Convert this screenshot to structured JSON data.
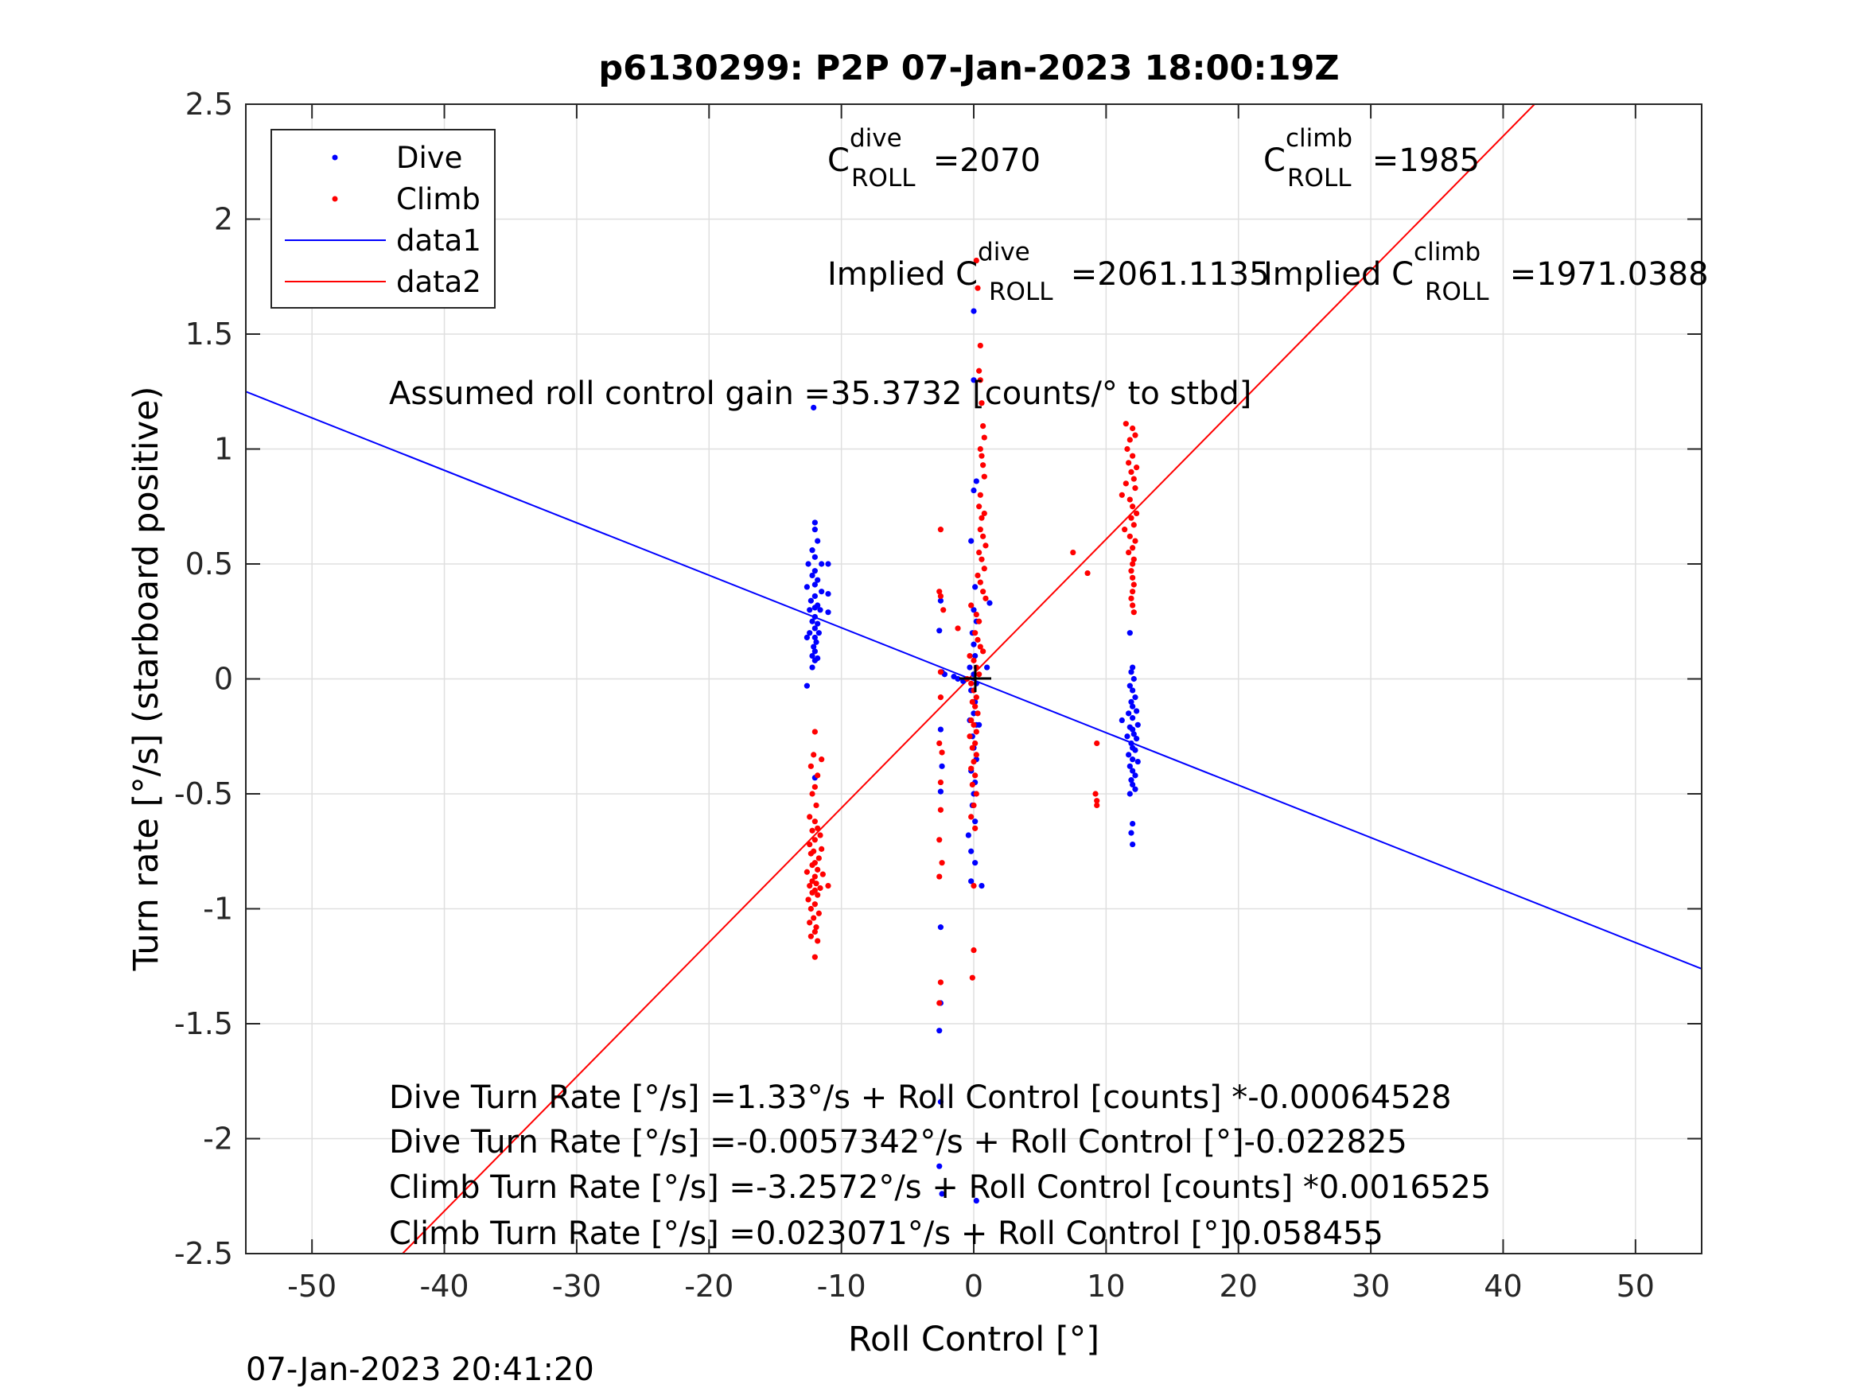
{
  "chart_data": {
    "type": "scatter",
    "title": "p6130299: P2P 07-Jan-2023 18:00:19Z",
    "xlabel": "Roll Control [°]",
    "ylabel": "Turn rate [°/s] (starboard positive)",
    "xlim": [
      -55,
      55
    ],
    "ylim": [
      -2.5,
      2.5
    ],
    "xticks": [
      -50,
      -40,
      -30,
      -20,
      -10,
      0,
      10,
      20,
      30,
      40,
      50
    ],
    "xtick_labels": [
      "-50",
      "-40",
      "-30",
      "-20",
      "-10",
      "0",
      "10",
      "20",
      "30",
      "40",
      "50"
    ],
    "yticks": [
      -2.5,
      -2,
      -1.5,
      -1,
      -0.5,
      0,
      0.5,
      1,
      1.5,
      2,
      2.5
    ],
    "ytick_labels": [
      "-2.5",
      "-2",
      "-1.5",
      "-1",
      "-0.5",
      "0",
      "0.5",
      "1",
      "1.5",
      "2",
      "2.5"
    ],
    "grid": true,
    "legend_position": "top-left",
    "series": [
      {
        "name": "Dive",
        "kind": "points",
        "color": "#0000ff",
        "points": [
          [
            -12,
            0.68
          ],
          [
            -12,
            0.65
          ],
          [
            -11.8,
            0.6
          ],
          [
            -12.2,
            0.56
          ],
          [
            -12,
            0.53
          ],
          [
            -12.5,
            0.5
          ],
          [
            -11.5,
            0.5
          ],
          [
            -11,
            0.5
          ],
          [
            -12,
            0.47
          ],
          [
            -12.2,
            0.45
          ],
          [
            -11.8,
            0.43
          ],
          [
            -12,
            0.41
          ],
          [
            -12.6,
            0.4
          ],
          [
            -11.5,
            0.38
          ],
          [
            -11,
            0.37
          ],
          [
            -12,
            0.36
          ],
          [
            -12.3,
            0.34
          ],
          [
            -11.8,
            0.32
          ],
          [
            -12,
            0.31
          ],
          [
            -11.6,
            0.3
          ],
          [
            -12.4,
            0.3
          ],
          [
            -11,
            0.29
          ],
          [
            -12,
            0.27
          ],
          [
            -12.2,
            0.25
          ],
          [
            -11.8,
            0.24
          ],
          [
            -12,
            0.22
          ],
          [
            -12.4,
            0.2
          ],
          [
            -11.7,
            0.2
          ],
          [
            -12,
            0.18
          ],
          [
            -12.6,
            0.18
          ],
          [
            -11.9,
            0.16
          ],
          [
            -12.1,
            0.14
          ],
          [
            -12,
            0.12
          ],
          [
            -12.2,
            0.1
          ],
          [
            -11.8,
            0.09
          ],
          [
            -12,
            0.08
          ],
          [
            -12.2,
            0.05
          ],
          [
            -12.1,
            1.18
          ],
          [
            -12.6,
            -0.03
          ],
          [
            -12,
            -0.43
          ],
          [
            -2.5,
            0.34
          ],
          [
            -2.6,
            0.21
          ],
          [
            -2.4,
            0.03
          ],
          [
            -2.2,
            0.02
          ],
          [
            -1.5,
            0.01
          ],
          [
            -1.2,
            0
          ],
          [
            -0.8,
            -0.01
          ],
          [
            -2.5,
            -0.22
          ],
          [
            -2.4,
            -0.38
          ],
          [
            -2.5,
            -0.49
          ],
          [
            -2.5,
            -1.08
          ],
          [
            -2.5,
            -1.41
          ],
          [
            -2.6,
            -1.53
          ],
          [
            -2.5,
            -1.84
          ],
          [
            -2.6,
            -2.12
          ],
          [
            -2.4,
            -2.24
          ],
          [
            0,
            1.6
          ],
          [
            0,
            1.3
          ],
          [
            0.2,
            0.86
          ],
          [
            0,
            0.82
          ],
          [
            -0.2,
            0.6
          ],
          [
            0.1,
            0.4
          ],
          [
            0,
            0.3
          ],
          [
            0.2,
            0.25
          ],
          [
            -0.1,
            0.2
          ],
          [
            0,
            0.15
          ],
          [
            0.1,
            0.1
          ],
          [
            -0.3,
            0.05
          ],
          [
            0,
            0.02
          ],
          [
            0.2,
            -0.02
          ],
          [
            -0.2,
            -0.05
          ],
          [
            0.1,
            -0.1
          ],
          [
            0,
            -0.15
          ],
          [
            -0.3,
            -0.18
          ],
          [
            0.2,
            -0.2
          ],
          [
            -0.1,
            -0.25
          ],
          [
            0,
            -0.3
          ],
          [
            0.2,
            -0.35
          ],
          [
            -0.2,
            -0.4
          ],
          [
            0.1,
            -0.45
          ],
          [
            0,
            -0.5
          ],
          [
            -0.1,
            -0.55
          ],
          [
            0.1,
            -0.62
          ],
          [
            -0.4,
            -0.68
          ],
          [
            -0.2,
            -0.75
          ],
          [
            0.1,
            -0.8
          ],
          [
            -0.2,
            -0.88
          ],
          [
            0.4,
            -0.2
          ],
          [
            1.2,
            0.33
          ],
          [
            1,
            0.05
          ],
          [
            0.6,
            -0.9
          ],
          [
            0.2,
            -2.27
          ],
          [
            11.8,
            0.2
          ],
          [
            12,
            0.05
          ],
          [
            11.9,
            0.03
          ],
          [
            12.1,
            0.0
          ],
          [
            11.8,
            -0.03
          ],
          [
            12,
            -0.05
          ],
          [
            12.2,
            -0.08
          ],
          [
            11.9,
            -0.1
          ],
          [
            12,
            -0.12
          ],
          [
            12.3,
            -0.14
          ],
          [
            11.7,
            -0.15
          ],
          [
            12,
            -0.17
          ],
          [
            11.2,
            -0.18
          ],
          [
            12.4,
            -0.2
          ],
          [
            11.8,
            -0.21
          ],
          [
            12,
            -0.22
          ],
          [
            12.1,
            -0.24
          ],
          [
            11.6,
            -0.25
          ],
          [
            12.3,
            -0.26
          ],
          [
            11.9,
            -0.28
          ],
          [
            12,
            -0.3
          ],
          [
            12.2,
            -0.31
          ],
          [
            11.7,
            -0.33
          ],
          [
            12,
            -0.35
          ],
          [
            12.4,
            -0.36
          ],
          [
            11.8,
            -0.38
          ],
          [
            12,
            -0.4
          ],
          [
            12.2,
            -0.42
          ],
          [
            11.9,
            -0.44
          ],
          [
            12,
            -0.46
          ],
          [
            12.2,
            -0.48
          ],
          [
            11.8,
            -0.5
          ],
          [
            12,
            -0.63
          ],
          [
            11.9,
            -0.67
          ],
          [
            12,
            -0.72
          ]
        ]
      },
      {
        "name": "Climb",
        "kind": "points",
        "color": "#ff0000",
        "points": [
          [
            -12,
            -0.23
          ],
          [
            -12.1,
            -0.33
          ],
          [
            -11.5,
            -0.35
          ],
          [
            -12.3,
            -0.38
          ],
          [
            -11.8,
            -0.42
          ],
          [
            -12,
            -0.47
          ],
          [
            -12.2,
            -0.5
          ],
          [
            -11.9,
            -0.55
          ],
          [
            -12.4,
            -0.6
          ],
          [
            -12,
            -0.62
          ],
          [
            -11.8,
            -0.65
          ],
          [
            -12.2,
            -0.66
          ],
          [
            -11.6,
            -0.68
          ],
          [
            -12,
            -0.7
          ],
          [
            -12.4,
            -0.72
          ],
          [
            -11.5,
            -0.74
          ],
          [
            -12.1,
            -0.75
          ],
          [
            -12.3,
            -0.76
          ],
          [
            -11.7,
            -0.78
          ],
          [
            -12,
            -0.8
          ],
          [
            -12.2,
            -0.81
          ],
          [
            -11.8,
            -0.83
          ],
          [
            -12.6,
            -0.84
          ],
          [
            -11.4,
            -0.85
          ],
          [
            -12,
            -0.86
          ],
          [
            -12.2,
            -0.88
          ],
          [
            -11.9,
            -0.89
          ],
          [
            -12.4,
            -0.9
          ],
          [
            -11.6,
            -0.91
          ],
          [
            -12,
            -0.92
          ],
          [
            -12.2,
            -0.93
          ],
          [
            -11.8,
            -0.94
          ],
          [
            -11,
            -0.9
          ],
          [
            -12.5,
            -0.96
          ],
          [
            -12,
            -0.98
          ],
          [
            -12.3,
            -1.0
          ],
          [
            -11.7,
            -1.02
          ],
          [
            -12.1,
            -1.04
          ],
          [
            -12.4,
            -1.06
          ],
          [
            -11.9,
            -1.08
          ],
          [
            -12,
            -1.1
          ],
          [
            -12.3,
            -1.12
          ],
          [
            -11.8,
            -1.14
          ],
          [
            -12,
            -1.21
          ],
          [
            -2.5,
            0.65
          ],
          [
            -2.6,
            0.38
          ],
          [
            -2.5,
            0.36
          ],
          [
            -2.3,
            0.3
          ],
          [
            -2.5,
            0.03
          ],
          [
            -2.5,
            -0.08
          ],
          [
            -2.6,
            -0.28
          ],
          [
            -2.4,
            -0.32
          ],
          [
            -2.5,
            -0.45
          ],
          [
            -2.5,
            -0.57
          ],
          [
            -2.6,
            -0.7
          ],
          [
            -2.4,
            -0.8
          ],
          [
            -2.6,
            -0.86
          ],
          [
            -2.5,
            -1.32
          ],
          [
            -2.6,
            -1.41
          ],
          [
            0.2,
            1.82
          ],
          [
            0.3,
            1.7
          ],
          [
            0.5,
            1.45
          ],
          [
            0.4,
            1.34
          ],
          [
            0.5,
            1.3
          ],
          [
            0.6,
            1.2
          ],
          [
            0.7,
            1.1
          ],
          [
            0.8,
            1.05
          ],
          [
            0.5,
            1.0
          ],
          [
            0.6,
            0.97
          ],
          [
            0.7,
            0.93
          ],
          [
            0.8,
            0.88
          ],
          [
            0.5,
            0.8
          ],
          [
            0.4,
            0.75
          ],
          [
            0.8,
            0.72
          ],
          [
            0.6,
            0.7
          ],
          [
            0.5,
            0.65
          ],
          [
            0.7,
            0.62
          ],
          [
            0.9,
            0.58
          ],
          [
            0.4,
            0.55
          ],
          [
            0.6,
            0.52
          ],
          [
            0.8,
            0.48
          ],
          [
            0.3,
            0.45
          ],
          [
            0.5,
            0.42
          ],
          [
            0.7,
            0.38
          ],
          [
            0.9,
            0.35
          ],
          [
            -0.2,
            0.32
          ],
          [
            0.2,
            0.28
          ],
          [
            0.4,
            0.25
          ],
          [
            -1.2,
            0.22
          ],
          [
            0.1,
            0.2
          ],
          [
            0.3,
            0.17
          ],
          [
            0.5,
            0.14
          ],
          [
            0.7,
            0.12
          ],
          [
            -0.3,
            0.1
          ],
          [
            0,
            0.08
          ],
          [
            0.2,
            0.05
          ],
          [
            0.4,
            0.02
          ],
          [
            -0.5,
            0.0
          ],
          [
            -0.2,
            -0.02
          ],
          [
            0,
            -0.05
          ],
          [
            0.2,
            -0.08
          ],
          [
            -0.1,
            -0.1
          ],
          [
            0.1,
            -0.12
          ],
          [
            0.3,
            -0.15
          ],
          [
            -0.2,
            -0.18
          ],
          [
            0,
            -0.2
          ],
          [
            0.2,
            -0.23
          ],
          [
            -0.3,
            -0.25
          ],
          [
            0.1,
            -0.28
          ],
          [
            -0.1,
            -0.3
          ],
          [
            0.2,
            -0.33
          ],
          [
            0,
            -0.36
          ],
          [
            -0.2,
            -0.39
          ],
          [
            0.1,
            -0.42
          ],
          [
            -0.1,
            -0.46
          ],
          [
            0.2,
            -0.5
          ],
          [
            0,
            -0.55
          ],
          [
            -0.2,
            -0.6
          ],
          [
            0.1,
            -0.65
          ],
          [
            0,
            -0.9
          ],
          [
            0,
            -1.18
          ],
          [
            -0.1,
            -1.3
          ],
          [
            7.5,
            0.55
          ],
          [
            8.6,
            0.46
          ],
          [
            9.3,
            -0.28
          ],
          [
            9.2,
            -0.5
          ],
          [
            9.3,
            -0.53
          ],
          [
            9.3,
            -0.55
          ],
          [
            11.5,
            1.11
          ],
          [
            12,
            1.09
          ],
          [
            12.2,
            1.06
          ],
          [
            11.8,
            1.04
          ],
          [
            11.6,
            1.0
          ],
          [
            12,
            0.97
          ],
          [
            11.7,
            0.94
          ],
          [
            12.3,
            0.92
          ],
          [
            11.9,
            0.9
          ],
          [
            12.1,
            0.87
          ],
          [
            11.5,
            0.85
          ],
          [
            12.2,
            0.83
          ],
          [
            11.2,
            0.8
          ],
          [
            11.8,
            0.78
          ],
          [
            12,
            0.75
          ],
          [
            12.3,
            0.72
          ],
          [
            11.9,
            0.7
          ],
          [
            12.1,
            0.67
          ],
          [
            11.4,
            0.65
          ],
          [
            11.8,
            0.62
          ],
          [
            12.2,
            0.6
          ],
          [
            12,
            0.57
          ],
          [
            11.7,
            0.55
          ],
          [
            12.1,
            0.52
          ],
          [
            12,
            0.5
          ],
          [
            11.9,
            0.47
          ],
          [
            12,
            0.44
          ],
          [
            12.1,
            0.41
          ],
          [
            12,
            0.38
          ],
          [
            11.9,
            0.35
          ],
          [
            12,
            0.32
          ],
          [
            12.1,
            0.29
          ]
        ]
      },
      {
        "name": "data1",
        "kind": "line",
        "color": "#0000ff",
        "intercept": -0.0057342,
        "slope": -0.022825
      },
      {
        "name": "data2",
        "kind": "line",
        "color": "#ff0000",
        "intercept": 0.023071,
        "slope": 0.058455
      }
    ],
    "annotations": {
      "c_dive_prefix": "C",
      "c_dive_sup": "dive",
      "c_dive_sub": "ROLL",
      "c_dive_value": " =2070",
      "c_climb_prefix": "C",
      "c_climb_sup": "climb",
      "c_climb_sub": "ROLL",
      "c_climb_value": " =1985",
      "implied_dive_prefix": "Implied C",
      "implied_dive_sup": "dive",
      "implied_dive_sub": "ROLL",
      "implied_dive_value": " =2061.1135",
      "implied_climb_prefix": "Implied C",
      "implied_climb_sup": "climb",
      "implied_climb_sub": "ROLL",
      "implied_climb_value": " =1971.0388",
      "gain": "Assumed roll control gain =35.3732 [counts/° to stbd]",
      "eq1": "Dive Turn Rate [°/s] =1.33°/s + Roll Control [counts] *-0.00064528",
      "eq2": "Dive Turn Rate [°/s] =-0.0057342°/s + Roll Control [°]-0.022825",
      "eq3": "Climb Turn Rate [°/s] =-3.2572°/s + Roll Control [counts] *0.0016525",
      "eq4": "Climb Turn Rate [°/s] =0.023071°/s + Roll Control [°]0.058455"
    }
  },
  "timestamp": "07-Jan-2023 20:41:20"
}
